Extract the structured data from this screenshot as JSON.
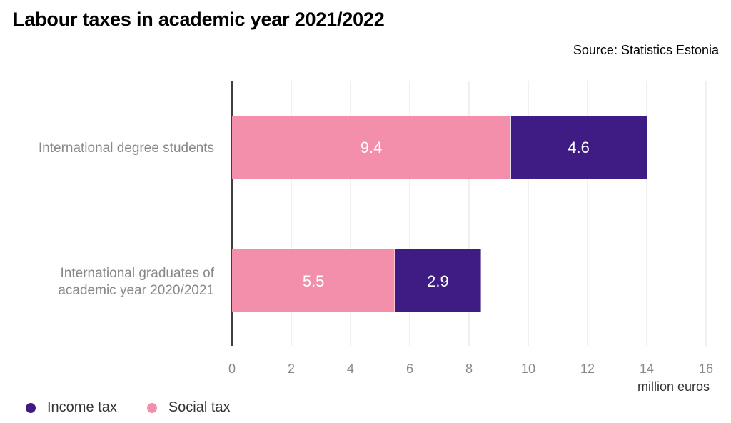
{
  "header": {
    "title": "Labour taxes in academic year 2021/2022",
    "source": "Source: Statistics Estonia"
  },
  "legend": {
    "items": [
      {
        "label": "Income tax",
        "color": "#3f1b84"
      },
      {
        "label": "Social tax",
        "color": "#f48fab"
      }
    ]
  },
  "chart_data": {
    "type": "bar",
    "orientation": "horizontal",
    "stacked": true,
    "categories": [
      "International degree students",
      "International graduates of academic year 2020/2021"
    ],
    "category_lines": [
      [
        "International degree students"
      ],
      [
        "International graduates of",
        "academic year 2020/2021"
      ]
    ],
    "series": [
      {
        "name": "Social tax",
        "values": [
          9.4,
          5.5
        ],
        "color": "#f48fab"
      },
      {
        "name": "Income tax",
        "values": [
          4.6,
          2.9
        ],
        "color": "#3f1b84"
      }
    ],
    "xlabel": "million euros",
    "xlim": [
      0,
      16
    ],
    "xticks": [
      0,
      2,
      4,
      6,
      8,
      10,
      12,
      14,
      16
    ],
    "grid": true,
    "legend_position": "bottom-left"
  }
}
